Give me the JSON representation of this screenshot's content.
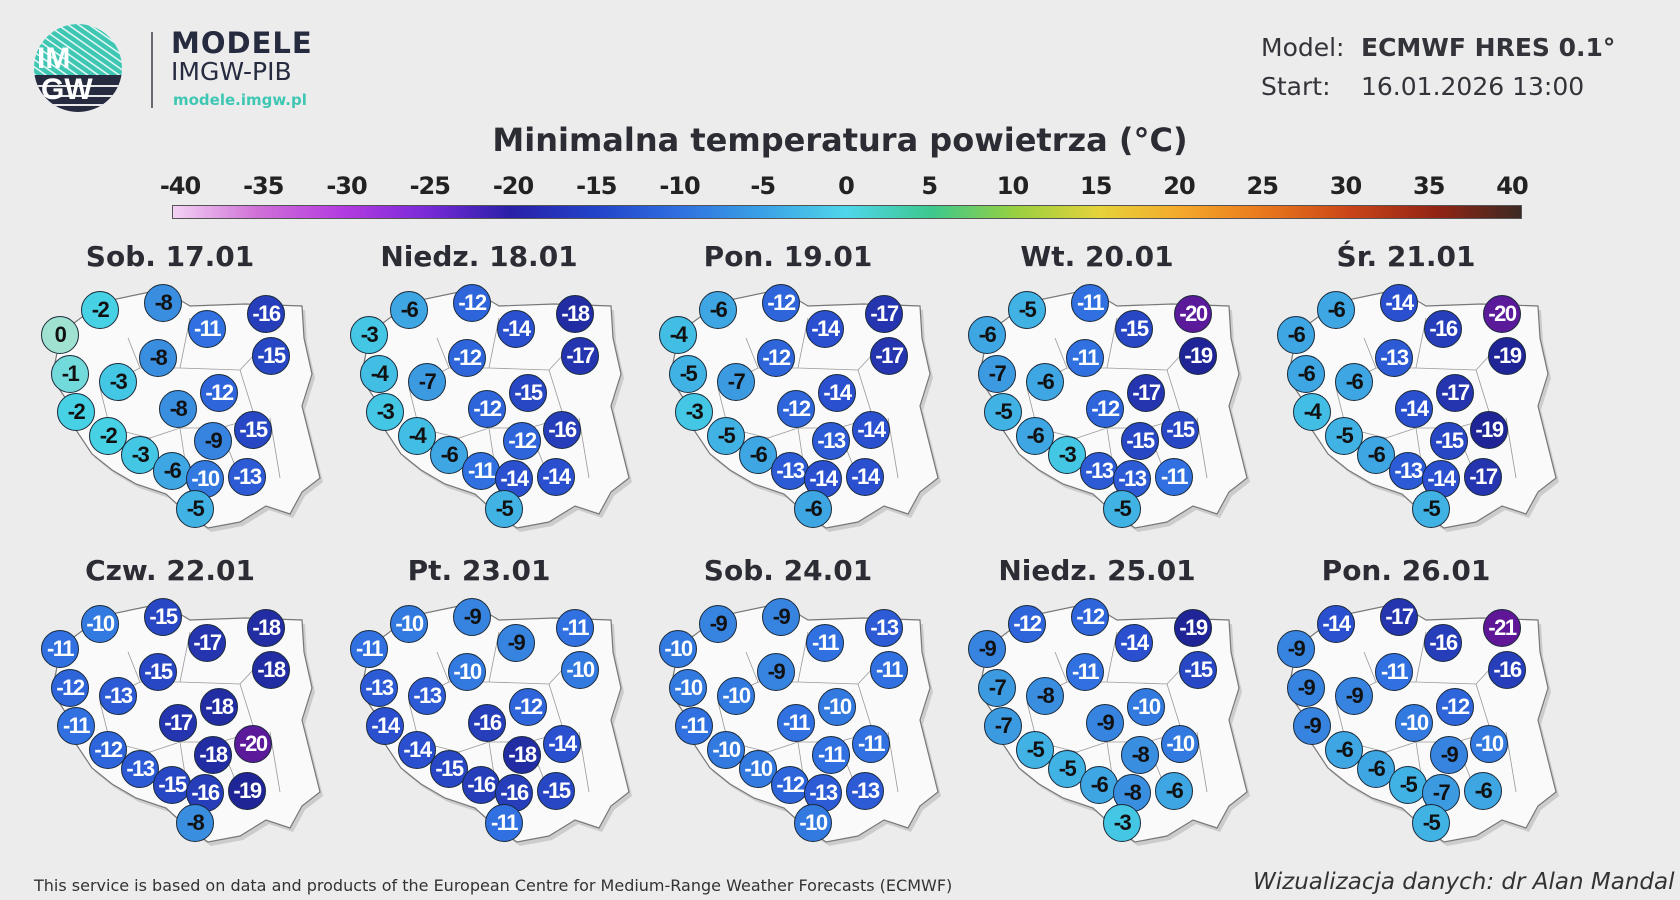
{
  "header": {
    "logo_text": "IMGW",
    "brand_title": "MODELE",
    "brand_subtitle": "IMGW-PIB",
    "brand_url": "modele.imgw.pl",
    "model_label": "Model:",
    "model_value": "ECMWF HRES 0.1°",
    "start_label": "Start:",
    "start_value": "16.01.2026 13:00"
  },
  "title": "Minimalna temperatura powietrza (°C)",
  "colorbar": {
    "ticks": [
      "-40",
      "-35",
      "-30",
      "-25",
      "-20",
      "-15",
      "-10",
      "-5",
      "0",
      "5",
      "10",
      "15",
      "20",
      "25",
      "30",
      "35",
      "40"
    ],
    "range": [
      -40,
      40
    ],
    "colors": [
      "#f3d2f3",
      "#d070d8",
      "#b43ce0",
      "#7a2ad8",
      "#2a20a8",
      "#2242c8",
      "#2f6fe0",
      "#3aa2e6",
      "#4fd6ea",
      "#3cc88e",
      "#98d040",
      "#e6d23a",
      "#f4a72a",
      "#e8751c",
      "#c84418",
      "#922414",
      "#3c2a22"
    ]
  },
  "days": [
    {
      "label": "Sob. 17.01",
      "values": [
        0,
        -2,
        -8,
        -11,
        -16,
        -15,
        -8,
        -1,
        -3,
        -12,
        -2,
        -8,
        -2,
        -9,
        -15,
        -3,
        -6,
        -10,
        -13,
        -5
      ]
    },
    {
      "label": "Niedz. 18.01",
      "values": [
        -3,
        -6,
        -12,
        -14,
        -18,
        -17,
        -12,
        -4,
        -7,
        -15,
        -3,
        -12,
        -4,
        -12,
        -16,
        -6,
        -11,
        -14,
        -14,
        -5
      ]
    },
    {
      "label": "Pon. 19.01",
      "values": [
        -4,
        -6,
        -12,
        -14,
        -17,
        -17,
        -12,
        -5,
        -7,
        -14,
        -3,
        -12,
        -5,
        -13,
        -14,
        -6,
        -13,
        -14,
        -14,
        -6
      ]
    },
    {
      "label": "Wt. 20.01",
      "values": [
        -6,
        -5,
        -11,
        -15,
        -20,
        -19,
        -11,
        -7,
        -6,
        -17,
        -5,
        -12,
        -6,
        -15,
        -15,
        -3,
        -13,
        -13,
        -11,
        -5
      ]
    },
    {
      "label": "Śr. 21.01",
      "values": [
        -6,
        -6,
        -14,
        -16,
        -20,
        -19,
        -13,
        -6,
        -6,
        -17,
        -4,
        -14,
        -5,
        -15,
        -19,
        -6,
        -13,
        -14,
        -17,
        -5
      ]
    },
    {
      "label": "Czw. 22.01",
      "values": [
        -11,
        -10,
        -15,
        -17,
        -18,
        -18,
        -15,
        -12,
        -13,
        -18,
        -11,
        -17,
        -12,
        -18,
        -20,
        -13,
        -15,
        -16,
        -19,
        -8
      ]
    },
    {
      "label": "Pt. 23.01",
      "values": [
        -11,
        -10,
        -9,
        -9,
        -11,
        -10,
        -10,
        -13,
        -13,
        -12,
        -14,
        -16,
        -14,
        -18,
        -14,
        -15,
        -16,
        -16,
        -15,
        -11
      ]
    },
    {
      "label": "Sob. 24.01",
      "values": [
        -10,
        -9,
        -9,
        -11,
        -13,
        -11,
        -9,
        -10,
        -10,
        -10,
        -11,
        -11,
        -10,
        -11,
        -11,
        -10,
        -12,
        -13,
        -13,
        -10
      ]
    },
    {
      "label": "Niedz. 25.01",
      "values": [
        -9,
        -12,
        -12,
        -14,
        -19,
        -15,
        -11,
        -7,
        -8,
        -10,
        -7,
        -9,
        -5,
        -8,
        -10,
        -5,
        -6,
        -8,
        -6,
        -3
      ]
    },
    {
      "label": "Pon. 26.01",
      "values": [
        -9,
        -14,
        -17,
        -16,
        -21,
        -16,
        -11,
        -9,
        -9,
        -12,
        -9,
        -10,
        -6,
        -9,
        -10,
        -6,
        -5,
        -7,
        -6,
        -5
      ]
    }
  ],
  "footer": {
    "source": "This service is based on data and products of the European Centre for Medium-Range Weather Forecasts (ECMWF)",
    "credit": "Wizualizacja danych: dr Alan Mandal"
  }
}
